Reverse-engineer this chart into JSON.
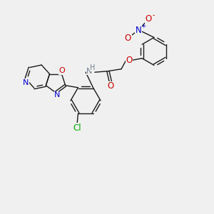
{
  "bg_color": "#f0f0f0",
  "bond_color": "#1a1a1a",
  "blue": "#0000cc",
  "red": "#cc0000",
  "green": "#00aa00",
  "gray": "#708090",
  "figsize": [
    3.0,
    3.0
  ],
  "dpi": 100,
  "xlim": [
    0,
    10
  ],
  "ylim": [
    0,
    10
  ]
}
